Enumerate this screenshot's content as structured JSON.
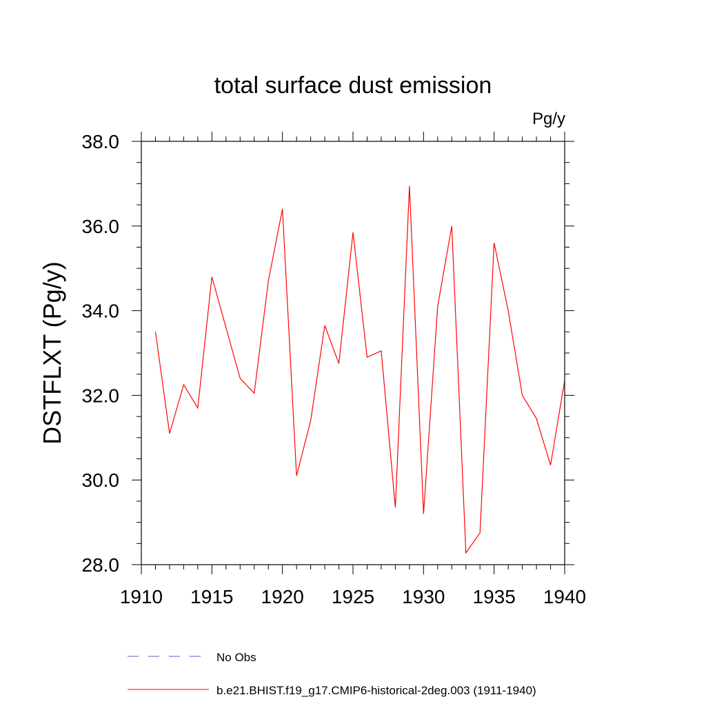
{
  "chart_data": {
    "type": "line",
    "title": "total surface dust emission",
    "units_label": "Pg/y",
    "ylabel": "DSTFLXT  (Pg/y)",
    "xlabel": "",
    "xlim": [
      1910,
      1940
    ],
    "ylim": [
      28.0,
      38.0
    ],
    "x_ticks": [
      1910,
      1915,
      1920,
      1925,
      1930,
      1935,
      1940
    ],
    "x_tick_labels": [
      "1910",
      "1915",
      "1920",
      "1925",
      "1930",
      "1935",
      "1940"
    ],
    "y_ticks": [
      28.0,
      30.0,
      32.0,
      34.0,
      36.0,
      38.0
    ],
    "y_tick_labels": [
      "28.0",
      "30.0",
      "32.0",
      "34.0",
      "36.0",
      "38.0"
    ],
    "grid": false,
    "legend_position": "bottom",
    "series": [
      {
        "name": "b.e21.BHIST.f19_g17.CMIP6-historical-2deg.003 (1911-1940)",
        "color": "#ff0000",
        "style": "solid",
        "x": [
          1911,
          1912,
          1913,
          1914,
          1915,
          1916,
          1917,
          1918,
          1919,
          1920,
          1921,
          1922,
          1923,
          1924,
          1925,
          1926,
          1927,
          1928,
          1929,
          1930,
          1931,
          1932,
          1933,
          1934,
          1935,
          1936,
          1937,
          1938,
          1939,
          1940
        ],
        "values": [
          33.5,
          31.1,
          32.25,
          31.7,
          34.8,
          33.6,
          32.4,
          32.05,
          34.7,
          36.4,
          30.1,
          31.4,
          33.65,
          32.75,
          35.85,
          32.9,
          33.05,
          29.35,
          36.95,
          29.2,
          34.1,
          36.0,
          28.28,
          28.75,
          35.6,
          34.0,
          32.0,
          31.45,
          30.35,
          32.35
        ]
      }
    ],
    "legend": [
      {
        "label": "No Obs",
        "color": "#6a5acd",
        "style": "dashed"
      },
      {
        "label": "b.e21.BHIST.f19_g17.CMIP6-historical-2deg.003 (1911-1940)",
        "color": "#ff0000",
        "style": "solid"
      }
    ]
  }
}
